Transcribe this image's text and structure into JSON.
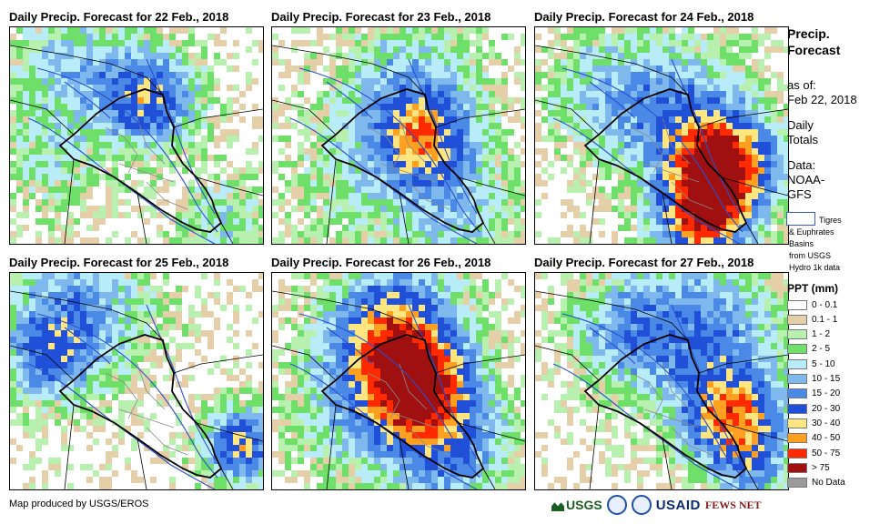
{
  "panels": [
    {
      "title": "Daily Precip. Forecast for 22 Feb., 2018",
      "date": "22 Feb."
    },
    {
      "title": "Daily Precip. Forecast for 23 Feb., 2018",
      "date": "23 Feb."
    },
    {
      "title": "Daily Precip. Forecast for 24 Feb., 2018",
      "date": "24 Feb."
    },
    {
      "title": "Daily Precip. Forecast for 25 Feb., 2018",
      "date": "25 Feb."
    },
    {
      "title": "Daily Precip. Forecast for 26 Feb., 2018",
      "date": "26 Feb."
    },
    {
      "title": "Daily Precip. Forecast for 27 Feb., 2018",
      "date": "27 Feb."
    }
  ],
  "side": {
    "title_line1": "Precip.",
    "title_line2": "Forecast",
    "asof_label": "as of:",
    "asof_date": "Feb 22, 2018",
    "daily_line1": "Daily",
    "daily_line2": "Totals",
    "data_label": "Data:",
    "data_line1": "NOAA-",
    "data_line2": "GFS",
    "basin_line1": "Tigres",
    "basin_line2": "& Euphrates",
    "basin_line3": "Basins",
    "basin_line4": "from USGS",
    "basin_line5": "Hydro 1k data"
  },
  "legend": {
    "title": "PPT (mm)",
    "items": [
      {
        "label": "0 - 0.1",
        "color": "#ffffff"
      },
      {
        "label": "0.1 - 1",
        "color": "#e5cfa8"
      },
      {
        "label": "1 - 2",
        "color": "#b8f0b0"
      },
      {
        "label": "2 - 5",
        "color": "#6ee06a"
      },
      {
        "label": "5 - 10",
        "color": "#b8ecf8"
      },
      {
        "label": "10 - 15",
        "color": "#7fb8ec"
      },
      {
        "label": "15 - 20",
        "color": "#4a8ae6"
      },
      {
        "label": "20 - 30",
        "color": "#2050d8"
      },
      {
        "label": "30 - 40",
        "color": "#ffe680"
      },
      {
        "label": "40 - 50",
        "color": "#ffa020"
      },
      {
        "label": "50 - 75",
        "color": "#ff2a00"
      },
      {
        "label": "> 75",
        "color": "#a01010"
      },
      {
        "label": "No Data",
        "color": "#9a9a9a"
      }
    ]
  },
  "credit": "Map produced by USGS/EROS",
  "logos": {
    "usgs": "USGS",
    "usaid": "USAID",
    "fews": "FEWS NET"
  }
}
